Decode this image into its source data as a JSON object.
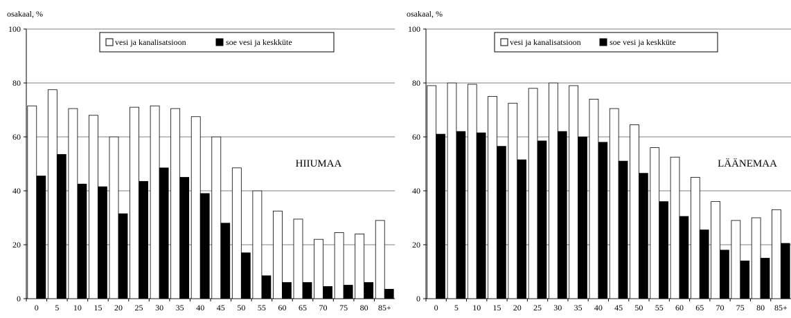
{
  "chart_data": [
    {
      "type": "bar",
      "ylabel": "osakaal, %",
      "annotation": "HIIUMAA",
      "ylim": [
        0,
        100
      ],
      "yticks": [
        "0",
        "20",
        "40",
        "60",
        "80",
        "100"
      ],
      "grid": true,
      "legend_position": "top-center",
      "categories": [
        "0",
        "5",
        "10",
        "15",
        "20",
        "25",
        "30",
        "35",
        "40",
        "45",
        "50",
        "55",
        "60",
        "65",
        "70",
        "75",
        "80",
        "85+"
      ],
      "series": [
        {
          "name": "vesi ja kanalisatsioon",
          "color": "#ffffff",
          "values": [
            71.5,
            77.5,
            70.5,
            68,
            60,
            71,
            71.5,
            70.5,
            67.5,
            60,
            48.5,
            40,
            32.5,
            29.5,
            22,
            24.5,
            24,
            29
          ]
        },
        {
          "name": "soe vesi ja keskküte",
          "color": "#000000",
          "values": [
            45.5,
            53.5,
            42.5,
            41.5,
            31.5,
            43.5,
            48.5,
            45,
            39,
            28,
            17,
            8.5,
            6,
            6,
            4.5,
            5,
            6,
            3.5
          ]
        }
      ]
    },
    {
      "type": "bar",
      "ylabel": "osakaal, %",
      "annotation": "LÄÄNEMAA",
      "ylim": [
        0,
        100
      ],
      "yticks": [
        "0",
        "20",
        "40",
        "60",
        "80",
        "100"
      ],
      "grid": true,
      "legend_position": "top-center",
      "categories": [
        "0",
        "5",
        "10",
        "15",
        "20",
        "25",
        "30",
        "35",
        "40",
        "45",
        "50",
        "55",
        "60",
        "65",
        "70",
        "75",
        "80",
        "85+"
      ],
      "series": [
        {
          "name": "vesi ja kanalisatsioon",
          "color": "#ffffff",
          "values": [
            79,
            80,
            79.5,
            75,
            72.5,
            78,
            80,
            79,
            74,
            70.5,
            64.5,
            56,
            52.5,
            45,
            36,
            29,
            30,
            33
          ]
        },
        {
          "name": "soe vesi ja keskküte",
          "color": "#000000",
          "values": [
            61,
            62,
            61.5,
            56.5,
            51.5,
            58.5,
            62,
            60,
            58,
            51,
            46.5,
            36,
            30.5,
            25.5,
            18,
            14,
            15,
            20.5
          ]
        }
      ]
    }
  ]
}
